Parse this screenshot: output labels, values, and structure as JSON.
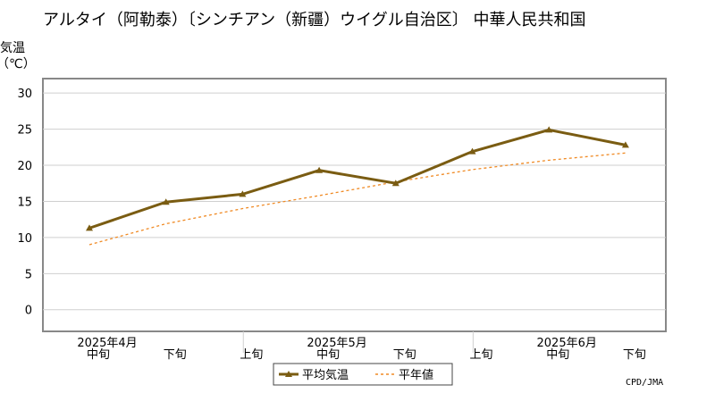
{
  "chart_data": {
    "type": "line",
    "title": "アルタイ（阿勒泰）〔シンチアン（新疆）ウイグル自治区〕 中華人民共和国",
    "ylabel_top": "気温",
    "ylabel_unit": "（℃）",
    "ylim": [
      -3,
      32
    ],
    "yticks": [
      0,
      5,
      10,
      15,
      20,
      25,
      30
    ],
    "grid": true,
    "categories": [
      "中旬",
      "下旬",
      "上旬",
      "中旬",
      "下旬",
      "上旬",
      "中旬",
      "下旬"
    ],
    "month_labels": [
      {
        "label": "2025年4月",
        "index": 0
      },
      {
        "label": "2025年5月",
        "index": 3
      },
      {
        "label": "2025年6月",
        "index": 6
      }
    ],
    "series": [
      {
        "name": "平均気温",
        "color": "#7a5c12",
        "values": [
          11.3,
          14.9,
          16.0,
          19.3,
          17.5,
          21.9,
          24.9,
          22.8
        ]
      },
      {
        "name": "平年値",
        "color": "#f08a24",
        "values": [
          9.0,
          11.9,
          14.0,
          15.8,
          17.7,
          19.4,
          20.7,
          21.7
        ]
      }
    ],
    "legend_position": "bottom-center",
    "credit": "CPD/JMA"
  }
}
